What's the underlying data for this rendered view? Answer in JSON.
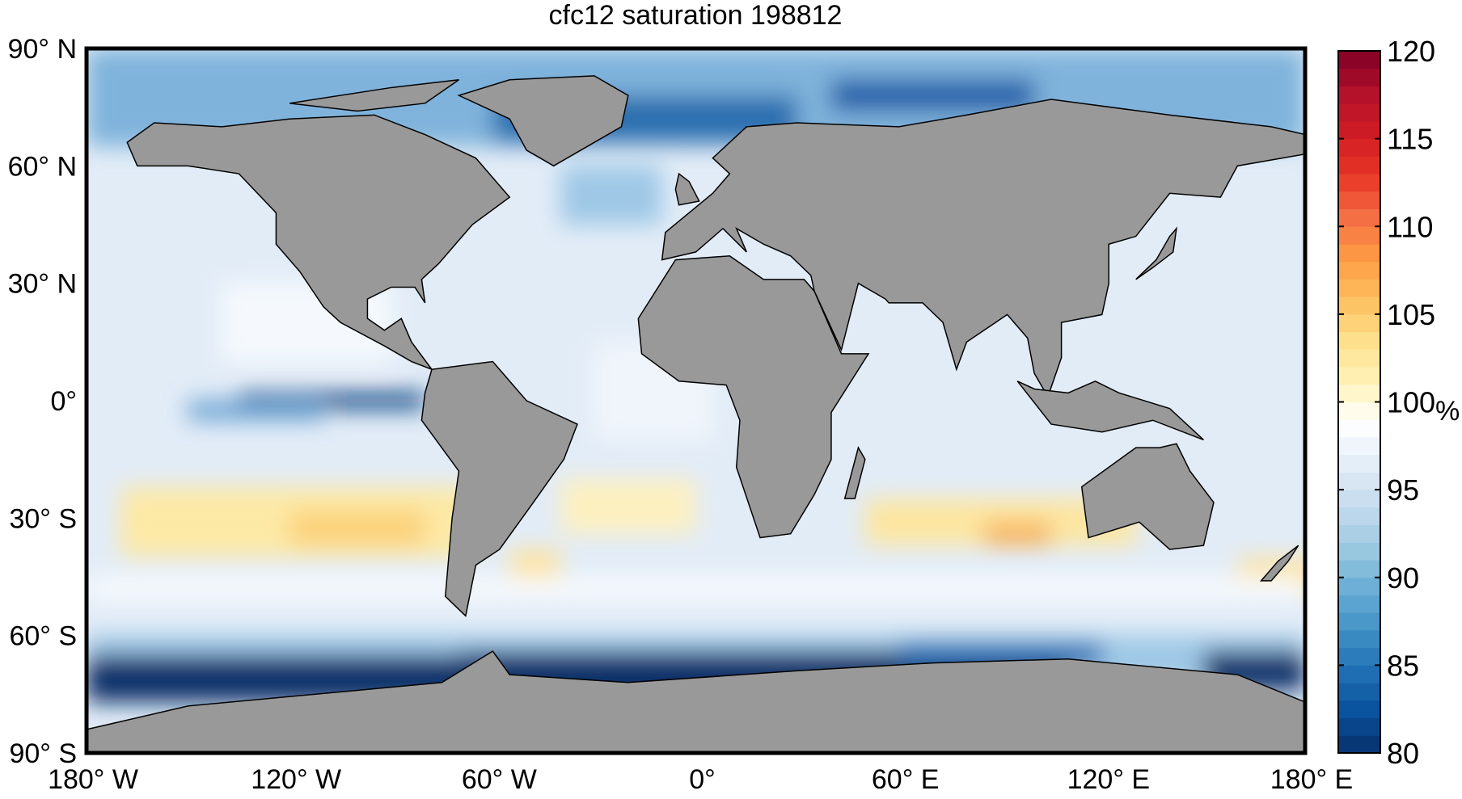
{
  "chart_data": {
    "type": "heatmap",
    "title": "cfc12 saturation 198812",
    "projection": "equirectangular",
    "lat_ticks": [
      {
        "value": 90,
        "label": "90° N"
      },
      {
        "value": 60,
        "label": "60° N"
      },
      {
        "value": 30,
        "label": "30° N"
      },
      {
        "value": 0,
        "label": "0°"
      },
      {
        "value": -30,
        "label": "30° S"
      },
      {
        "value": -60,
        "label": "60° S"
      },
      {
        "value": -90,
        "label": "90° S"
      }
    ],
    "lon_ticks": [
      {
        "value": -180,
        "label": "180° W"
      },
      {
        "value": -120,
        "label": "120° W"
      },
      {
        "value": -60,
        "label": "60° W"
      },
      {
        "value": 0,
        "label": "0°"
      },
      {
        "value": 60,
        "label": "60° E"
      },
      {
        "value": 120,
        "label": "120° E"
      },
      {
        "value": 180,
        "label": "180° E"
      }
    ],
    "colorbar": {
      "range": [
        80,
        120
      ],
      "ticks": [
        "80",
        "85",
        "90",
        "95",
        "100",
        "105",
        "110",
        "115",
        "120"
      ],
      "unit": "%",
      "colormap": "diverging blue-white-red",
      "colors": [
        "#08306b",
        "#08519c",
        "#2171b5",
        "#4292c6",
        "#6baed6",
        "#9ecae1",
        "#c6dbef",
        "#e4eef8",
        "#ffffff",
        "#fff3b8",
        "#fee08b",
        "#fdbf5e",
        "#fd9a44",
        "#f46d43",
        "#e83526",
        "#d01c24",
        "#b2102a",
        "#800026"
      ]
    },
    "land_color": "#999999",
    "features": [
      {
        "region": "Southern Ocean near Antarctica",
        "level": "80-85"
      },
      {
        "region": "Arctic / North Atlantic",
        "level": "85-92"
      },
      {
        "region": "Equatorial Pacific band",
        "level": "82-88"
      },
      {
        "region": "South Pacific subtropics",
        "level": "101-104"
      },
      {
        "region": "South Indian Ocean",
        "level": "101-107"
      },
      {
        "region": "South Atlantic subtropics",
        "level": "101-103"
      },
      {
        "region": "Open ocean elsewhere",
        "level": "95-100"
      }
    ]
  }
}
